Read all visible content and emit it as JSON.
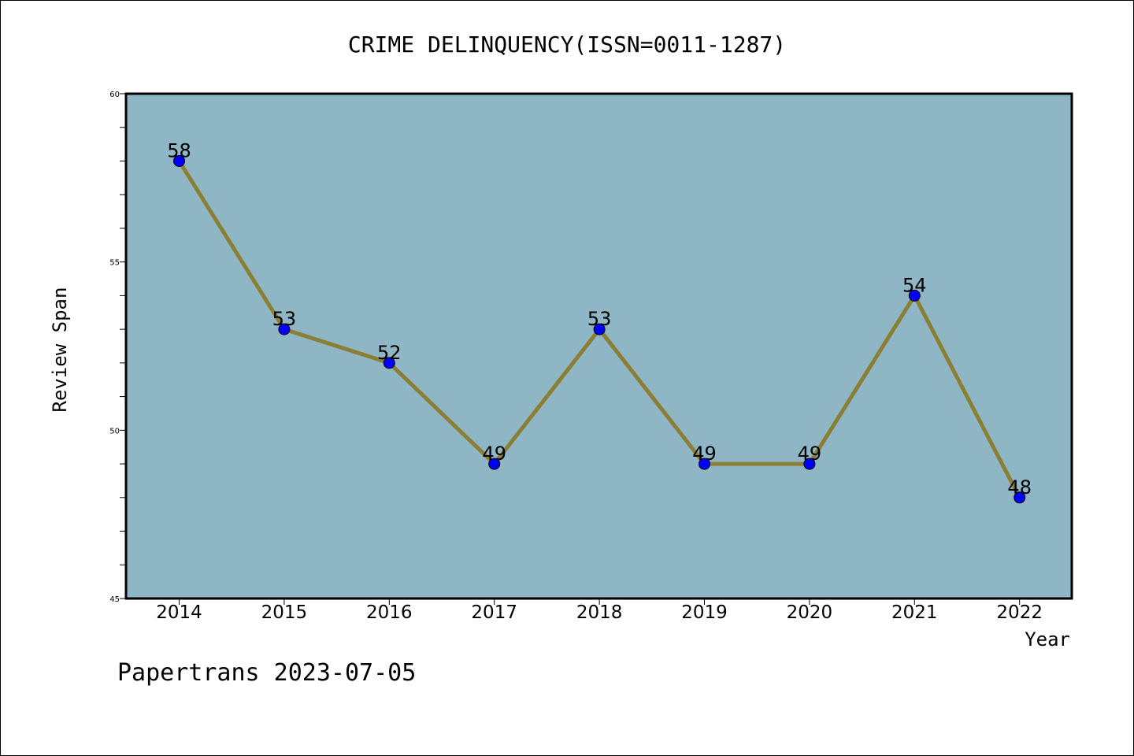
{
  "chart_data": {
    "type": "line",
    "title": "CRIME DELINQUENCY(ISSN=0011-1287)",
    "xlabel": "Year",
    "ylabel": "Review Span",
    "categories": [
      "2014",
      "2015",
      "2016",
      "2017",
      "2018",
      "2019",
      "2020",
      "2021",
      "2022"
    ],
    "series": [
      {
        "values": [
          58,
          53,
          52,
          49,
          53,
          49,
          49,
          54,
          48
        ]
      }
    ],
    "ylim": [
      45,
      60
    ],
    "yticks": [
      45,
      50,
      55,
      60
    ],
    "grid": false,
    "data_labels": true
  },
  "colors": {
    "plot_background": "#8fb6c4",
    "line": "#8a7f35",
    "marker": "#0000ff",
    "axes": "#000000"
  },
  "footer": "Papertrans 2023-07-05"
}
